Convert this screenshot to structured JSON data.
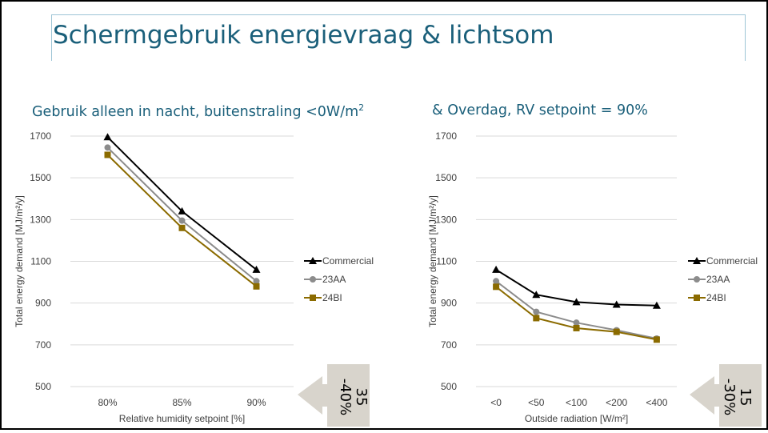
{
  "slide": {
    "title": "Schermgebruik energievraag & lichtsom",
    "left_subtitle": "Gebruik alleen in nacht, buitenstraling <0W/m",
    "left_subtitle_sup": "2",
    "right_subtitle": "& Overdag, RV setpoint = 90%",
    "left_arrow": {
      "line1": "35",
      "line2": "-40%"
    },
    "right_arrow": {
      "line1": "15",
      "line2": "-30%"
    },
    "arrow_color": "#d8d4cc"
  },
  "chart_data": [
    {
      "type": "line",
      "xlabel": "Relative humidity setpoint [%]",
      "ylabel": "Total energy demand [MJ/m²/y]",
      "categories": [
        "80%",
        "85%",
        "90%"
      ],
      "ylim": [
        500,
        1700
      ],
      "yticks": [
        500,
        700,
        900,
        1100,
        1300,
        1500,
        1700
      ],
      "grid": true,
      "legend": "right",
      "series": [
        {
          "name": "Commercial",
          "values": [
            1695,
            1340,
            1060
          ],
          "color": "#000000",
          "marker": "triangle"
        },
        {
          "name": "23AA",
          "values": [
            1645,
            1295,
            1005
          ],
          "color": "#8c8c8c",
          "marker": "circle"
        },
        {
          "name": "24BI",
          "values": [
            1610,
            1260,
            980
          ],
          "color": "#8b6b00",
          "marker": "square"
        }
      ]
    },
    {
      "type": "line",
      "xlabel": "Outside radiation [W/m²]",
      "ylabel": "Total energy demand [MJ/m²/y]",
      "categories": [
        "<0",
        "<50",
        "<100",
        "<200",
        "<400"
      ],
      "ylim": [
        500,
        1700
      ],
      "yticks": [
        500,
        700,
        900,
        1100,
        1300,
        1500,
        1700
      ],
      "grid": true,
      "legend": "right",
      "series": [
        {
          "name": "Commercial",
          "values": [
            1060,
            940,
            905,
            893,
            888
          ],
          "color": "#000000",
          "marker": "triangle"
        },
        {
          "name": "23AA",
          "values": [
            1005,
            858,
            806,
            770,
            730
          ],
          "color": "#8c8c8c",
          "marker": "circle"
        },
        {
          "name": "24BI",
          "values": [
            978,
            828,
            780,
            762,
            725
          ],
          "color": "#8b6b00",
          "marker": "square"
        }
      ]
    }
  ]
}
